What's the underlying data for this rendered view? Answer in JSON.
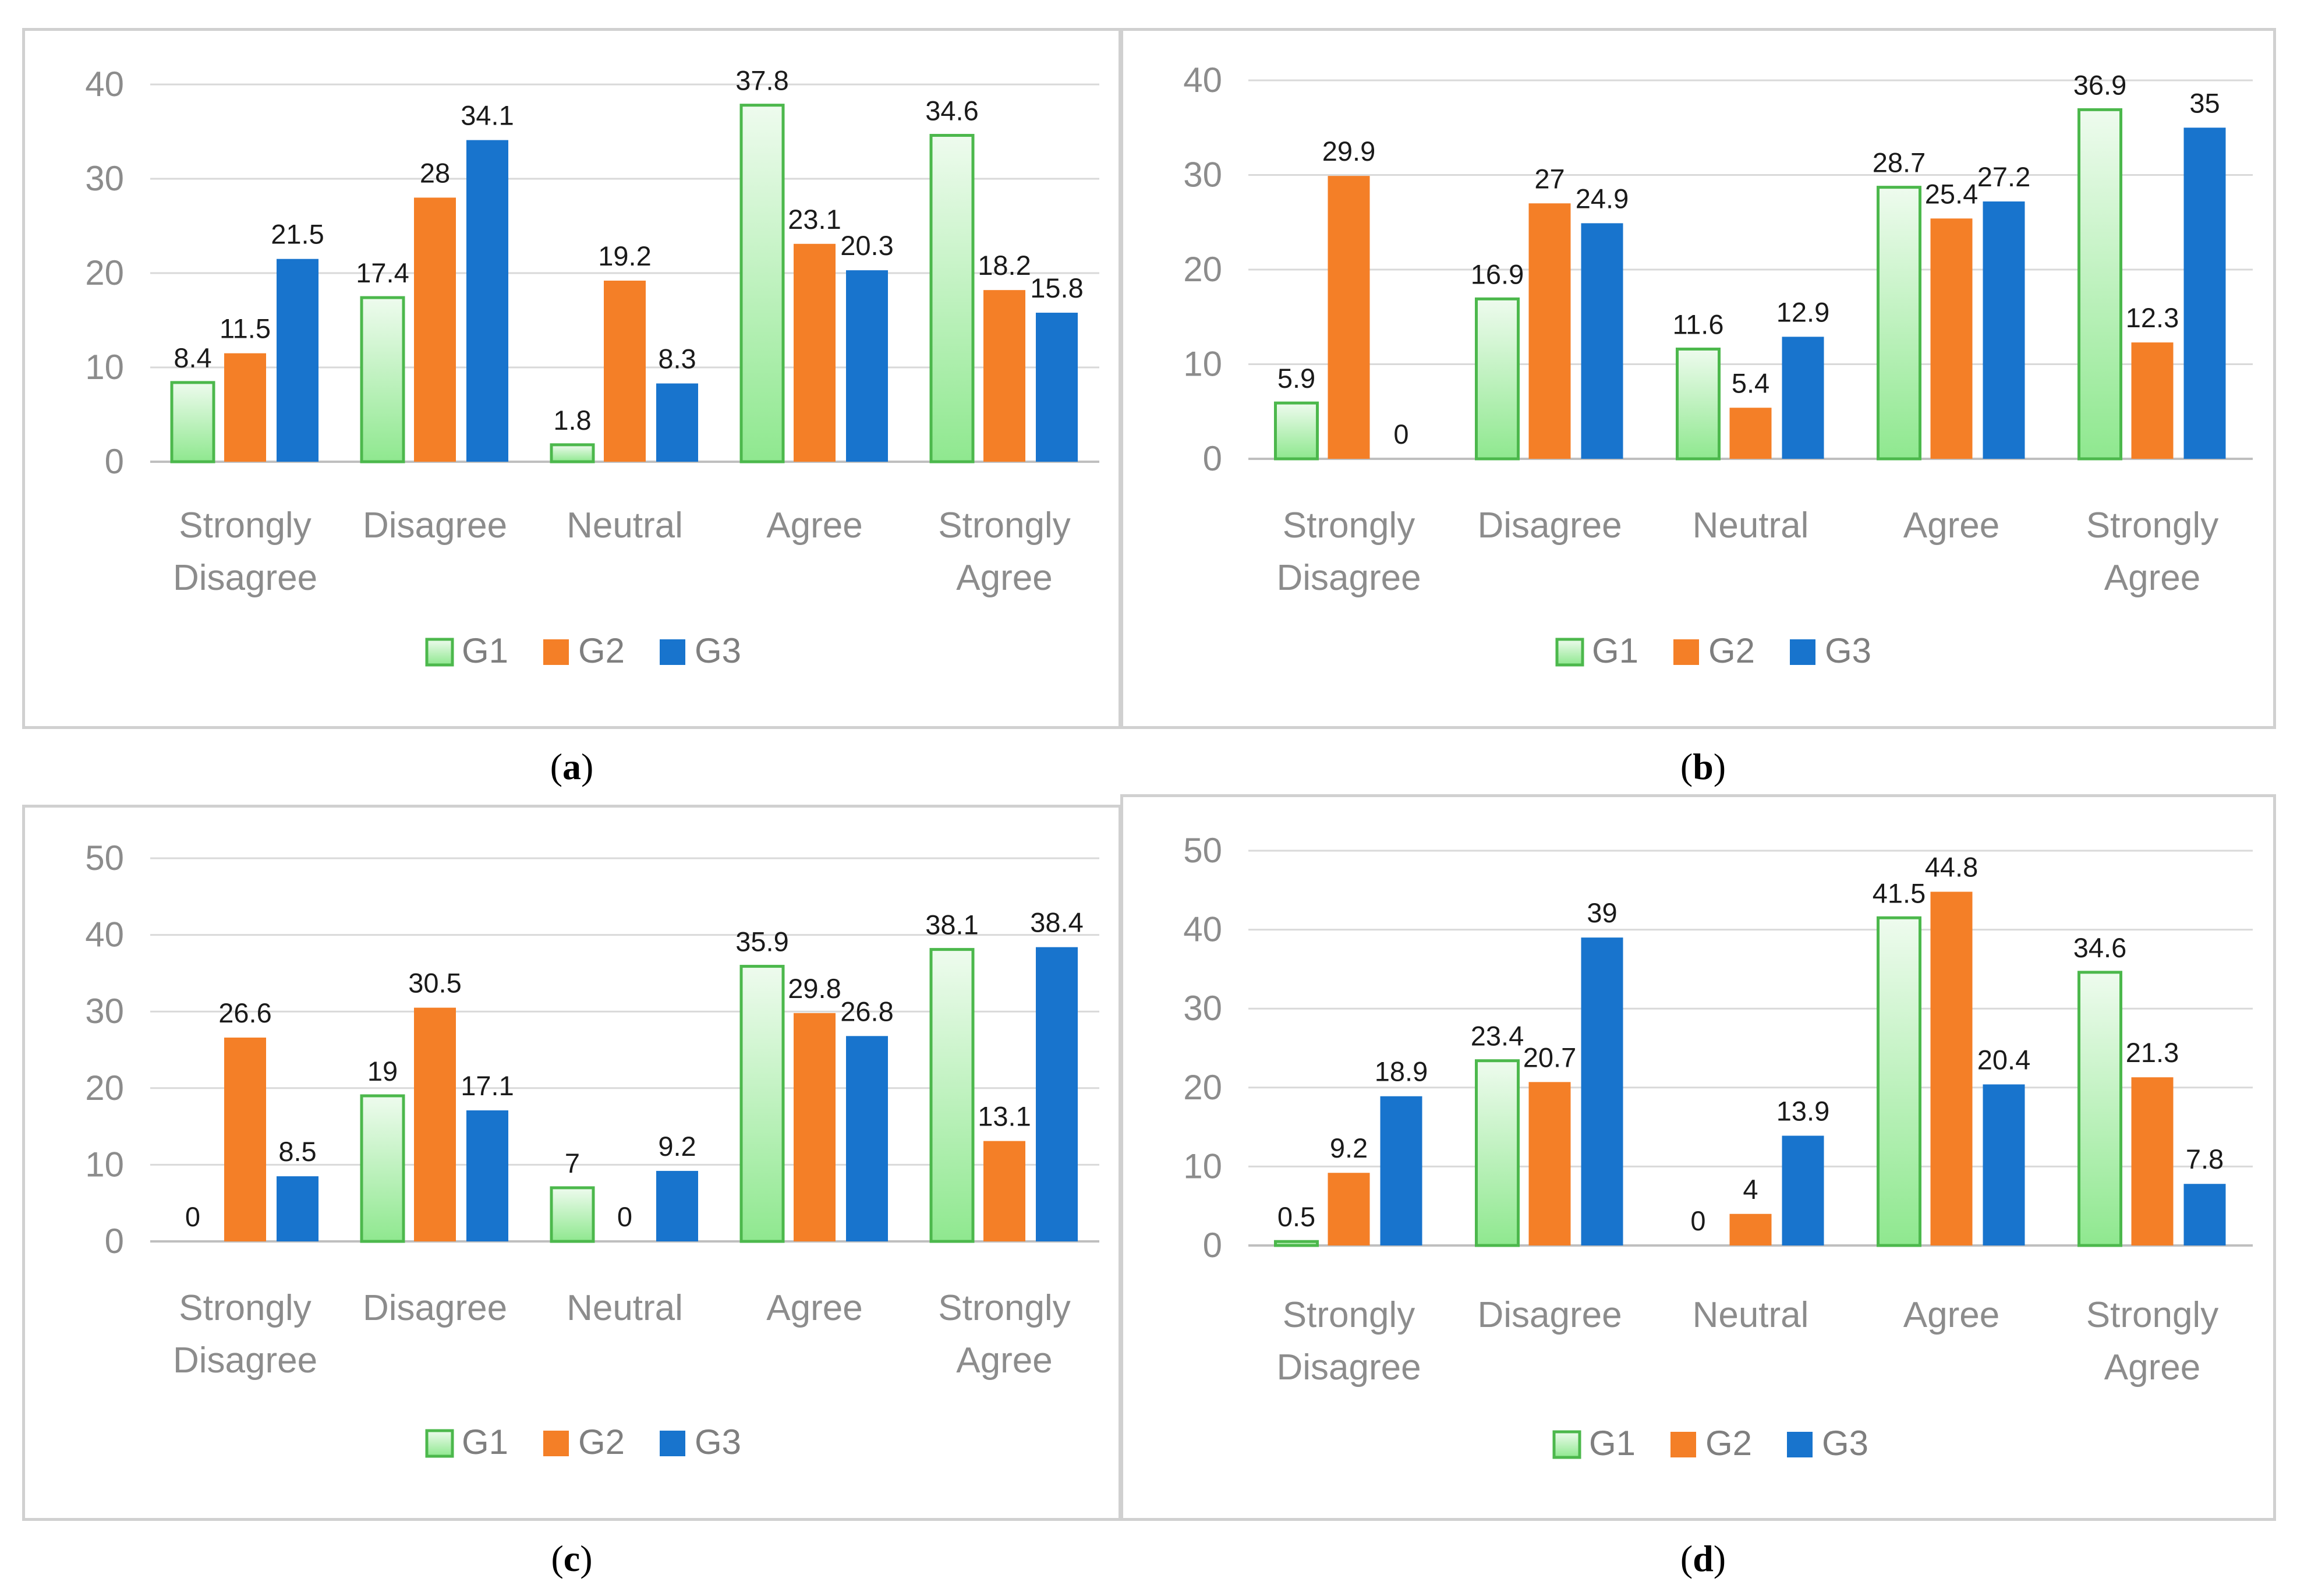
{
  "chart_data": [
    {
      "type": "bar",
      "panel_label": "a",
      "categories": [
        [
          "Strongly",
          "Disagree"
        ],
        [
          "Disagree"
        ],
        [
          "Neutral"
        ],
        [
          "Agree"
        ],
        [
          "Strongly",
          "Agree"
        ]
      ],
      "ylim": [
        0,
        40
      ],
      "yticks": [
        0,
        10,
        20,
        30,
        40
      ],
      "series": [
        {
          "name": "G1",
          "values": [
            8.4,
            17.4,
            1.8,
            37.8,
            34.6
          ]
        },
        {
          "name": "G2",
          "values": [
            11.5,
            28,
            19.2,
            23.1,
            18.2
          ]
        },
        {
          "name": "G3",
          "values": [
            21.5,
            34.1,
            8.3,
            20.3,
            15.8
          ]
        }
      ],
      "legend": "bottom",
      "grid": true
    },
    {
      "type": "bar",
      "panel_label": "b",
      "categories": [
        [
          "Strongly",
          "Disagree"
        ],
        [
          "Disagree"
        ],
        [
          "Neutral"
        ],
        [
          "Agree"
        ],
        [
          "Strongly",
          "Agree"
        ]
      ],
      "ylim": [
        0,
        40
      ],
      "yticks": [
        0,
        10,
        20,
        30,
        40
      ],
      "series": [
        {
          "name": "G1",
          "values": [
            5.9,
            16.9,
            11.6,
            28.7,
            36.9
          ]
        },
        {
          "name": "G2",
          "values": [
            29.9,
            27,
            5.4,
            25.4,
            12.3
          ]
        },
        {
          "name": "G3",
          "values": [
            0,
            24.9,
            12.9,
            27.2,
            35
          ]
        }
      ],
      "legend": "bottom",
      "grid": true
    },
    {
      "type": "bar",
      "panel_label": "c",
      "categories": [
        [
          "Strongly",
          "Disagree"
        ],
        [
          "Disagree"
        ],
        [
          "Neutral"
        ],
        [
          "Agree"
        ],
        [
          "Strongly",
          "Agree"
        ]
      ],
      "ylim": [
        0,
        50
      ],
      "yticks": [
        0,
        10,
        20,
        30,
        40,
        50
      ],
      "series": [
        {
          "name": "G1",
          "values": [
            0,
            19,
            7,
            35.9,
            38.1
          ]
        },
        {
          "name": "G2",
          "values": [
            26.6,
            30.5,
            0,
            29.8,
            13.1
          ]
        },
        {
          "name": "G3",
          "values": [
            8.5,
            17.1,
            9.2,
            26.8,
            38.4
          ]
        }
      ],
      "legend": "bottom",
      "grid": true
    },
    {
      "type": "bar",
      "panel_label": "d",
      "categories": [
        [
          "Strongly",
          "Disagree"
        ],
        [
          "Disagree"
        ],
        [
          "Neutral"
        ],
        [
          "Agree"
        ],
        [
          "Strongly",
          "Agree"
        ]
      ],
      "ylim": [
        0,
        50
      ],
      "yticks": [
        0,
        10,
        20,
        30,
        40,
        50
      ],
      "series": [
        {
          "name": "G1",
          "values": [
            0.5,
            23.4,
            0,
            41.5,
            34.6
          ]
        },
        {
          "name": "G2",
          "values": [
            9.2,
            20.7,
            4,
            44.8,
            21.3
          ]
        },
        {
          "name": "G3",
          "values": [
            18.9,
            39,
            13.9,
            20.4,
            7.8
          ]
        }
      ],
      "legend": "bottom",
      "grid": true
    }
  ],
  "colors": {
    "g1_fill_top": "#eefbee",
    "g1_fill_bottom": "#8fe88f",
    "g1_stroke": "#4cb84c",
    "g2": "#f47f27",
    "g3": "#1874cd",
    "grid": "#d9d9d9",
    "axis": "#bfbfbf"
  }
}
